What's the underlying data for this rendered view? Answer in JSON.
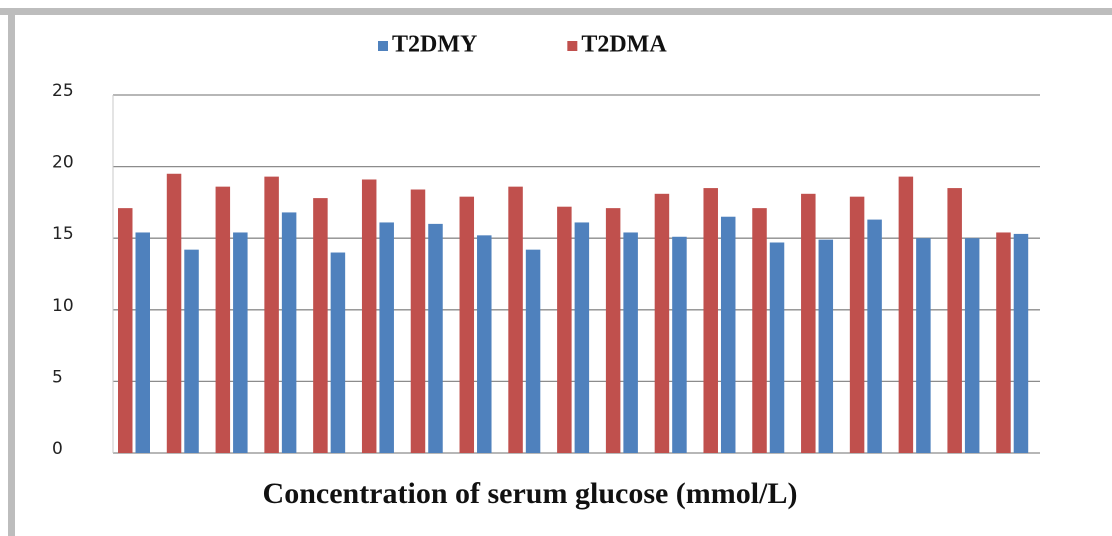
{
  "chart_data": {
    "type": "bar",
    "x_label": "Concentration of serum glucose (mmol/L)",
    "categories": [
      null,
      null,
      null,
      null,
      null,
      null,
      null,
      null,
      null,
      null,
      null,
      null,
      null,
      null,
      null,
      null,
      null,
      null,
      null
    ],
    "series": [
      {
        "name": "T2DMY",
        "color": "#4f81bd",
        "values": [
          15.4,
          14.2,
          15.4,
          16.8,
          14.0,
          16.1,
          16.0,
          15.2,
          14.2,
          16.1,
          15.4,
          15.1,
          16.5,
          14.7,
          14.9,
          16.3,
          15.0,
          15.0,
          15.3
        ]
      },
      {
        "name": "T2DMA",
        "color": "#c0504d",
        "values": [
          17.1,
          19.5,
          18.6,
          19.3,
          17.8,
          19.1,
          18.4,
          17.9,
          18.6,
          17.2,
          17.1,
          18.1,
          18.5,
          17.1,
          18.1,
          17.9,
          19.3,
          18.5,
          15.4
        ]
      }
    ],
    "ylim": [
      0,
      25
    ],
    "yticks": [
      0,
      5,
      10,
      15,
      20,
      25
    ],
    "grid": true,
    "legend": "top"
  }
}
